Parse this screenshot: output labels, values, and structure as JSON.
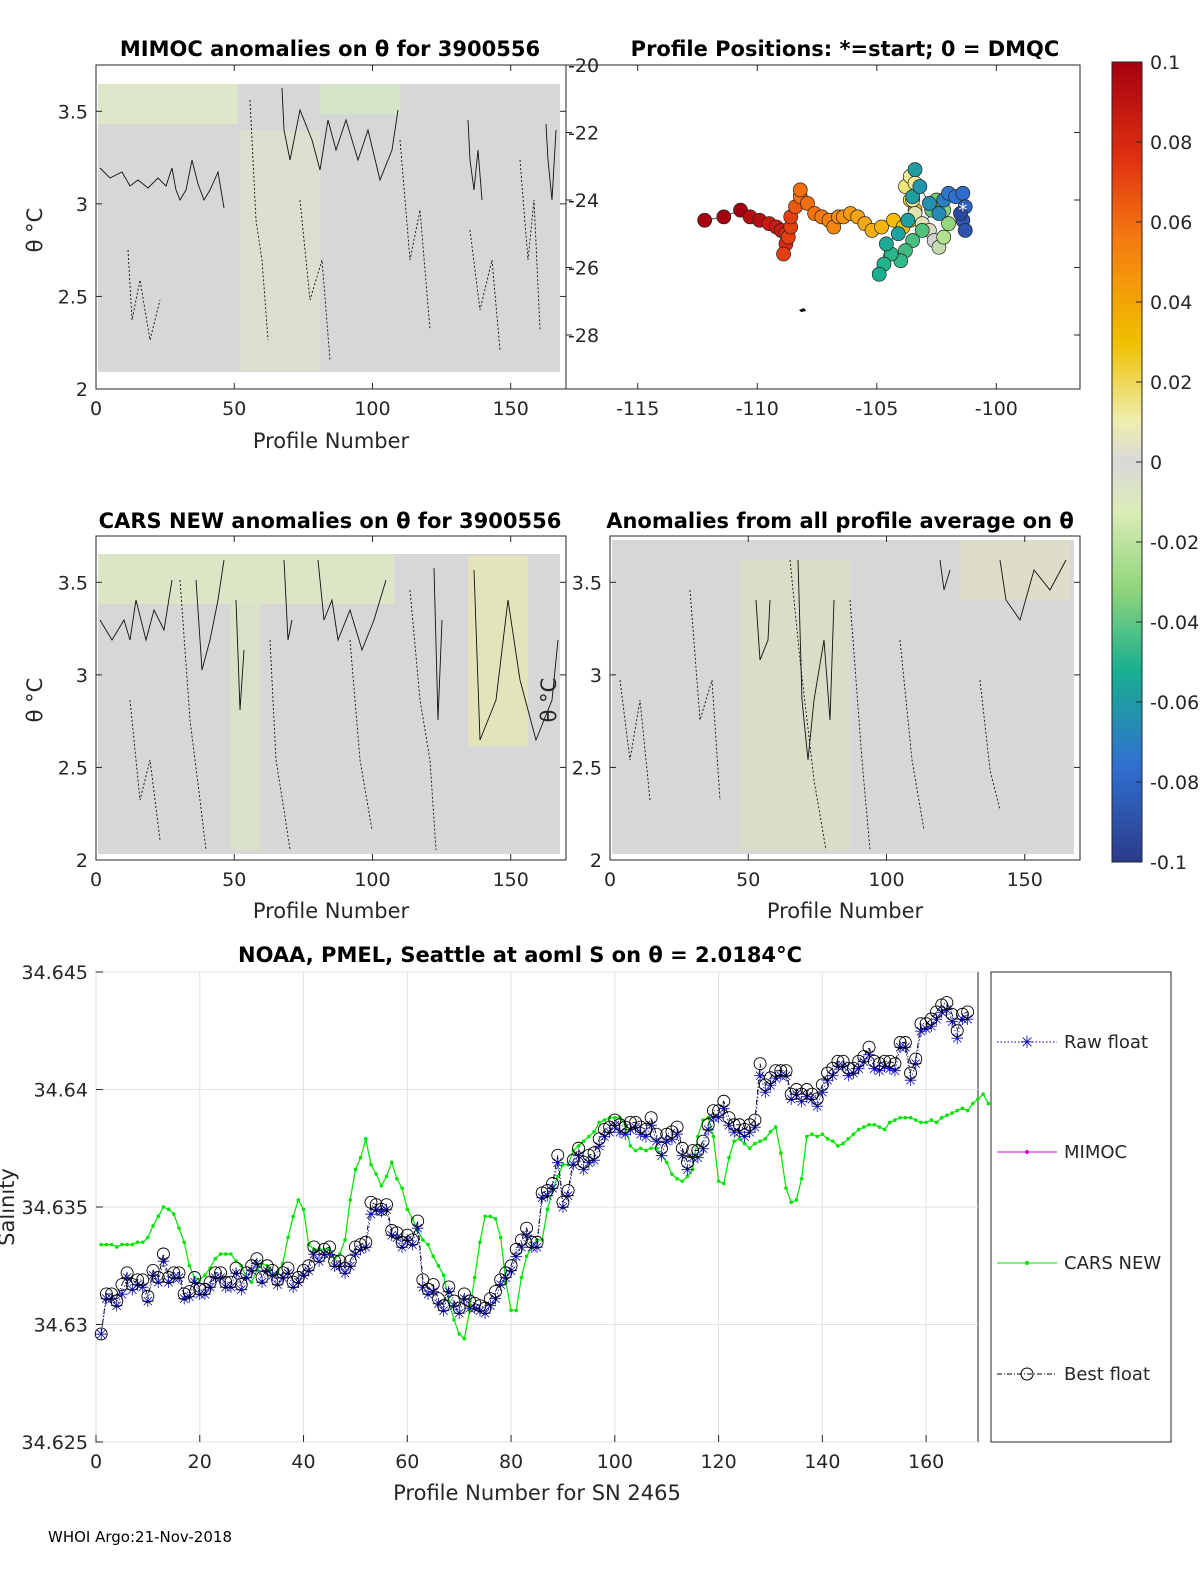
{
  "footer": "WHOI Argo:21-Nov-2018",
  "colors": {
    "cars": "#00e400",
    "mimoc": "#e000e0",
    "raw": "#0000b4",
    "best": "#000000"
  },
  "colorbar": {
    "ticks": [
      "0.1",
      "0.08",
      "0.06",
      "0.04",
      "0.02",
      "0",
      "-0.02",
      "-0.04",
      "-0.06",
      "-0.08",
      "-0.1"
    ],
    "range": [
      -0.1,
      0.1
    ]
  },
  "chart_data": [
    {
      "id": "mimoc",
      "type": "heatmap",
      "title": "MIMOC anomalies on θ  for 3900556",
      "xlabel": "Profile Number",
      "ylabel": "θ °C",
      "xlim": [
        0,
        170
      ],
      "ylim": [
        2,
        3.75
      ],
      "xticks": [
        "0",
        "50",
        "100",
        "150"
      ],
      "yticks": [
        "2",
        "2.5",
        "3",
        "3.5"
      ],
      "values_note": "anomaly field mostly near 0, slightly negative (light green) near top"
    },
    {
      "id": "positions",
      "type": "scatter",
      "title": "Profile Positions: *=start; 0 = DMQC",
      "xlabel": "",
      "ylabel": "",
      "xlim": [
        -118,
        -96.5
      ],
      "ylim": [
        -29.6,
        -20
      ],
      "xticks": [
        "-115",
        "-110",
        "-105",
        "-100"
      ],
      "yticks": [
        "-20",
        "-22",
        "-24",
        "-26",
        "-28"
      ],
      "points": [
        [
          -112.2,
          -24.6,
          0.1
        ],
        [
          -111.4,
          -24.5,
          0.1
        ],
        [
          -110.7,
          -24.3,
          0.1
        ],
        [
          -110.3,
          -24.5,
          0.095
        ],
        [
          -109.9,
          -24.6,
          0.095
        ],
        [
          -109.5,
          -24.7,
          0.09
        ],
        [
          -109.2,
          -24.8,
          0.09
        ],
        [
          -109.0,
          -24.9,
          0.09
        ],
        [
          -108.8,
          -25.0,
          0.085
        ],
        [
          -108.8,
          -25.3,
          0.085
        ],
        [
          -108.9,
          -25.6,
          0.08
        ],
        [
          -108.7,
          -25.1,
          0.08
        ],
        [
          -108.6,
          -24.8,
          0.08
        ],
        [
          -108.6,
          -24.5,
          0.08
        ],
        [
          -108.4,
          -24.2,
          0.075
        ],
        [
          -108.2,
          -23.9,
          0.07
        ],
        [
          -108.2,
          -23.7,
          0.07
        ],
        [
          -107.9,
          -24.1,
          0.07
        ],
        [
          -107.6,
          -24.4,
          0.068
        ],
        [
          -107.3,
          -24.5,
          0.066
        ],
        [
          -107.0,
          -24.6,
          0.064
        ],
        [
          -106.8,
          -24.8,
          0.062
        ],
        [
          -106.6,
          -24.5,
          0.06
        ],
        [
          -106.4,
          -24.5,
          0.058
        ],
        [
          -106.1,
          -24.4,
          0.055
        ],
        [
          -105.8,
          -24.5,
          0.052
        ],
        [
          -105.5,
          -24.7,
          0.05
        ],
        [
          -105.2,
          -24.9,
          0.046
        ],
        [
          -104.8,
          -24.8,
          0.042
        ],
        [
          -104.3,
          -24.6,
          0.038
        ],
        [
          -103.9,
          -24.8,
          0.034
        ],
        [
          -103.6,
          -24.6,
          0.03
        ],
        [
          -103.4,
          -24.3,
          0.028
        ],
        [
          -103.6,
          -24.0,
          0.025
        ],
        [
          -103.8,
          -23.6,
          0.022
        ],
        [
          -103.6,
          -23.3,
          0.02
        ],
        [
          -103.4,
          -23.5,
          0.018
        ],
        [
          -103.5,
          -24.0,
          0.015
        ],
        [
          -103.4,
          -24.4,
          0.012
        ],
        [
          -103.1,
          -24.7,
          0.01
        ],
        [
          -102.8,
          -24.9,
          0.005
        ],
        [
          -102.6,
          -25.2,
          0.0
        ],
        [
          -102.4,
          -25.4,
          -0.01
        ],
        [
          -102.2,
          -25.1,
          -0.02
        ],
        [
          -102.0,
          -24.7,
          -0.03
        ],
        [
          -102.2,
          -24.3,
          -0.035
        ],
        [
          -102.5,
          -24.0,
          -0.04
        ],
        [
          -102.7,
          -24.3,
          -0.045
        ],
        [
          -103.1,
          -24.9,
          -0.048
        ],
        [
          -103.5,
          -25.2,
          -0.05
        ],
        [
          -103.8,
          -25.5,
          -0.052
        ],
        [
          -104.0,
          -25.8,
          -0.054
        ],
        [
          -104.4,
          -25.6,
          -0.056
        ],
        [
          -104.7,
          -25.9,
          -0.058
        ],
        [
          -104.9,
          -26.2,
          -0.06
        ],
        [
          -104.6,
          -25.3,
          -0.062
        ],
        [
          -104.1,
          -25.0,
          -0.064
        ],
        [
          -103.7,
          -24.6,
          -0.065
        ],
        [
          -103.5,
          -23.9,
          -0.066
        ],
        [
          -103.4,
          -23.1,
          -0.066
        ],
        [
          -103.2,
          -23.6,
          -0.068
        ],
        [
          -102.8,
          -24.1,
          -0.07
        ],
        [
          -102.4,
          -24.4,
          -0.072
        ],
        [
          -102.2,
          -24.0,
          -0.075
        ],
        [
          -102.0,
          -23.8,
          -0.078
        ],
        [
          -101.7,
          -23.9,
          -0.08
        ],
        [
          -101.4,
          -23.8,
          -0.082
        ],
        [
          -101.3,
          -24.2,
          -0.085
        ],
        [
          -101.4,
          -24.6,
          -0.088
        ],
        [
          -101.3,
          -24.9,
          -0.09
        ],
        [
          -101.5,
          -24.4,
          -0.095
        ]
      ],
      "start": [
        -101.4,
        -24.3
      ]
    },
    {
      "id": "cars",
      "type": "heatmap",
      "title": "CARS NEW anomalies on θ for 3900556",
      "xlabel": "Profile Number",
      "ylabel": "θ °C",
      "xlim": [
        0,
        170
      ],
      "ylim": [
        2,
        3.75
      ],
      "xticks": [
        "0",
        "50",
        "100",
        "150"
      ],
      "yticks": [
        "2",
        "2.5",
        "3",
        "3.5"
      ],
      "values_note": "anomaly field near 0, light green near top left, yellowish at profiles 140-160"
    },
    {
      "id": "allavg",
      "type": "heatmap",
      "title": "Anomalies from all profile average on θ",
      "xlabel": "Profile Number",
      "ylabel": "θ °C",
      "xlim": [
        0,
        170
      ],
      "ylim": [
        2,
        3.75
      ],
      "xticks": [
        "0",
        "50",
        "100",
        "150"
      ],
      "yticks": [
        "2",
        "2.5",
        "3",
        "3.5"
      ],
      "values_note": "anomaly field near 0, slight positive/negative bands around profiles 55-80"
    },
    {
      "id": "salinity",
      "type": "line",
      "title": "NOAA, PMEL, Seattle at aoml S on θ = 2.0184",
      "title_unit": "°C",
      "xlabel": "Profile Number for SN 2465",
      "ylabel": "Salinity",
      "xlim": [
        0,
        170
      ],
      "ylim": [
        34.625,
        34.645
      ],
      "xticks": [
        "0",
        "20",
        "40",
        "60",
        "80",
        "100",
        "120",
        "140",
        "160"
      ],
      "yticks": [
        "34.625",
        "34.63",
        "34.635",
        "34.64",
        "34.645"
      ],
      "legend": [
        "Raw float",
        "MIMOC",
        "CARS NEW",
        "Best float"
      ],
      "series": [
        {
          "name": "Raw float",
          "x_start": 1,
          "values": [
            34.6296,
            34.6311,
            34.6311,
            34.6308,
            34.6313,
            34.632,
            34.6315,
            34.6317,
            34.6316,
            34.631,
            34.6321,
            34.6318,
            34.6327,
            34.6318,
            34.632,
            34.632,
            34.6311,
            34.6312,
            34.6318,
            34.6313,
            34.6313,
            34.6316,
            34.632,
            34.632,
            34.6316,
            34.6316,
            34.6322,
            34.6315,
            34.632,
            34.6323,
            34.6326,
            34.6318,
            34.6323,
            34.6321,
            34.6317,
            34.632,
            34.6322,
            34.6316,
            34.6318,
            34.6321,
            34.6323,
            34.633,
            34.6327,
            34.633,
            34.633,
            34.6325,
            34.6325,
            34.6322,
            34.6325,
            34.633,
            34.6332,
            34.6333,
            34.6347,
            34.6349,
            34.6348,
            34.6349,
            34.6338,
            34.6337,
            34.6333,
            34.6336,
            34.6334,
            34.6341,
            34.6316,
            34.6313,
            34.6314,
            34.6309,
            34.6306,
            34.6314,
            34.6308,
            34.6305,
            34.6311,
            34.6307,
            34.6307,
            34.6306,
            34.6305,
            34.6308,
            34.6311,
            34.6317,
            34.632,
            34.6323,
            34.6329,
            34.6333,
            34.6338,
            34.6333,
            34.6333,
            34.6354,
            34.6355,
            34.6358,
            34.6369,
            34.635,
            34.6355,
            34.6368,
            34.6372,
            34.6366,
            34.6369,
            34.637,
            34.6376,
            34.638,
            34.6382,
            34.6385,
            34.6382,
            34.6381,
            34.6383,
            34.6384,
            34.6381,
            34.638,
            34.6385,
            34.6378,
            34.6372,
            34.6378,
            34.6379,
            34.6381,
            34.6372,
            34.6366,
            34.6371,
            34.6371,
            34.6375,
            34.6383,
            34.6388,
            34.6388,
            34.6392,
            34.6385,
            34.6382,
            34.6382,
            34.638,
            34.6382,
            34.6384,
            34.6406,
            34.6399,
            34.6402,
            34.6405,
            34.6406,
            34.6406,
            34.6396,
            34.6398,
            34.6395,
            34.6397,
            34.6396,
            34.6393,
            34.6399,
            34.6404,
            34.6406,
            34.641,
            34.641,
            34.6406,
            34.6407,
            34.6409,
            34.6412,
            34.6415,
            34.6409,
            34.6408,
            34.641,
            34.6409,
            34.6408,
            34.6418,
            34.6418,
            34.6404,
            34.6411,
            34.6425,
            34.6426,
            34.6427,
            34.643,
            34.6433,
            34.6434,
            34.6429,
            34.6422,
            34.643,
            34.643
          ]
        },
        {
          "name": "CARS NEW",
          "x_start": 1,
          "values": [
            34.6334,
            34.6334,
            34.6334,
            34.6333,
            34.6334,
            34.6334,
            34.6334,
            34.6335,
            34.6335,
            34.6337,
            34.6342,
            34.6346,
            34.635,
            34.6349,
            34.6347,
            34.6341,
            34.6335,
            34.6325,
            34.632,
            34.6319,
            34.6321,
            34.6324,
            34.6328,
            34.633,
            34.633,
            34.633,
            34.6327,
            34.6325,
            34.632,
            34.6318,
            34.6323,
            34.6326,
            34.6325,
            34.6321,
            34.6322,
            34.6326,
            34.6337,
            34.6346,
            34.6353,
            34.6349,
            34.6334,
            34.6332,
            34.6332,
            34.6332,
            34.6332,
            34.6328,
            34.633,
            34.6336,
            34.6353,
            34.6366,
            34.6371,
            34.6379,
            34.6368,
            34.6364,
            34.6359,
            34.6363,
            34.6369,
            34.6362,
            34.6358,
            34.6349,
            34.6345,
            34.634,
            34.6336,
            34.6334,
            34.6329,
            34.6325,
            34.6321,
            34.631,
            34.6302,
            34.6296,
            34.6294,
            34.6306,
            34.632,
            34.6335,
            34.6346,
            34.6346,
            34.6345,
            34.6337,
            34.6318,
            34.6306,
            34.6306,
            34.632,
            34.6329,
            34.6333,
            34.6336,
            34.6336,
            34.6349,
            34.6357,
            34.6363,
            34.6368,
            34.6368,
            34.6374,
            34.6376,
            34.6378,
            34.638,
            34.6382,
            34.6386,
            34.6387,
            34.6388,
            34.6388,
            34.6388,
            34.6385,
            34.6376,
            34.6374,
            34.6375,
            34.6374,
            34.6375,
            34.6375,
            34.6372,
            34.6369,
            34.6364,
            34.6362,
            34.6361,
            34.6363,
            34.6366,
            34.638,
            34.6387,
            34.6388,
            34.638,
            34.6361,
            34.636,
            34.6371,
            34.6378,
            34.6379,
            34.6377,
            34.6375,
            34.6377,
            34.6378,
            34.6379,
            34.6382,
            34.6384,
            34.6373,
            34.6358,
            34.6352,
            34.6353,
            34.6362,
            34.638,
            34.6381,
            34.638,
            34.6381,
            34.6379,
            34.6378,
            34.6376,
            34.6377,
            34.6379,
            34.6381,
            34.6383,
            34.6384,
            34.6385,
            34.6385,
            34.6384,
            34.6383,
            34.6386,
            34.6387,
            34.6388,
            34.6388,
            34.6388,
            34.6387,
            34.6386,
            34.6386,
            34.6387,
            34.6386,
            34.6388,
            34.6389,
            34.639,
            34.6391,
            34.6392,
            34.6391,
            34.6394,
            34.6396,
            34.6398,
            34.6394
          ]
        },
        {
          "name": "Best float",
          "x_start": 1,
          "values": [
            34.6296,
            34.6313,
            34.6313,
            34.631,
            34.6317,
            34.6322,
            34.6317,
            34.6319,
            34.6319,
            34.6312,
            34.6323,
            34.632,
            34.633,
            34.632,
            34.6322,
            34.6322,
            34.6313,
            34.6314,
            34.632,
            34.6315,
            34.6315,
            34.6318,
            34.6322,
            34.6322,
            34.6318,
            34.6318,
            34.6324,
            34.6317,
            34.6322,
            34.6325,
            34.6328,
            34.632,
            34.6325,
            34.6323,
            34.6319,
            34.6322,
            34.6324,
            34.6318,
            34.632,
            34.6323,
            34.6325,
            34.6333,
            34.6329,
            34.6332,
            34.6333,
            34.6327,
            34.6327,
            34.6324,
            34.6327,
            34.6333,
            34.6334,
            34.6335,
            34.6352,
            34.6351,
            34.6349,
            34.6351,
            34.634,
            34.6339,
            34.6335,
            34.6338,
            34.6336,
            34.6344,
            34.6319,
            34.6315,
            34.6317,
            34.6311,
            34.6308,
            34.6316,
            34.631,
            34.6307,
            34.6313,
            34.631,
            34.6309,
            34.6308,
            34.6307,
            34.6311,
            34.6314,
            34.6319,
            34.6322,
            34.6325,
            34.6332,
            34.6336,
            34.6341,
            34.6335,
            34.6335,
            34.6356,
            34.6357,
            34.636,
            34.6372,
            34.6352,
            34.6357,
            34.637,
            34.6375,
            34.6369,
            34.6372,
            34.6373,
            34.6379,
            34.6383,
            34.6384,
            34.6387,
            34.6385,
            34.6384,
            34.6386,
            34.6386,
            34.6384,
            34.6383,
            34.6388,
            34.6381,
            34.6375,
            34.6381,
            34.6382,
            34.6384,
            34.6375,
            34.6369,
            34.6374,
            34.6374,
            34.6378,
            34.6385,
            34.6391,
            34.6391,
            34.6395,
            34.6388,
            34.6385,
            34.6385,
            34.6383,
            34.6385,
            34.6387,
            34.6411,
            34.6402,
            34.6405,
            34.6408,
            34.6408,
            34.6408,
            34.6398,
            34.64,
            34.6398,
            34.64,
            34.6398,
            34.6396,
            34.6402,
            34.6407,
            34.6409,
            34.6412,
            34.6412,
            34.6409,
            34.6409,
            34.6412,
            34.6414,
            34.6418,
            34.6412,
            34.6411,
            34.6412,
            34.6412,
            34.6411,
            34.642,
            34.642,
            34.6407,
            34.6413,
            34.6428,
            34.6428,
            34.643,
            34.6433,
            34.6436,
            34.6437,
            34.6432,
            34.6425,
            34.6432,
            34.6433
          ]
        }
      ]
    }
  ]
}
